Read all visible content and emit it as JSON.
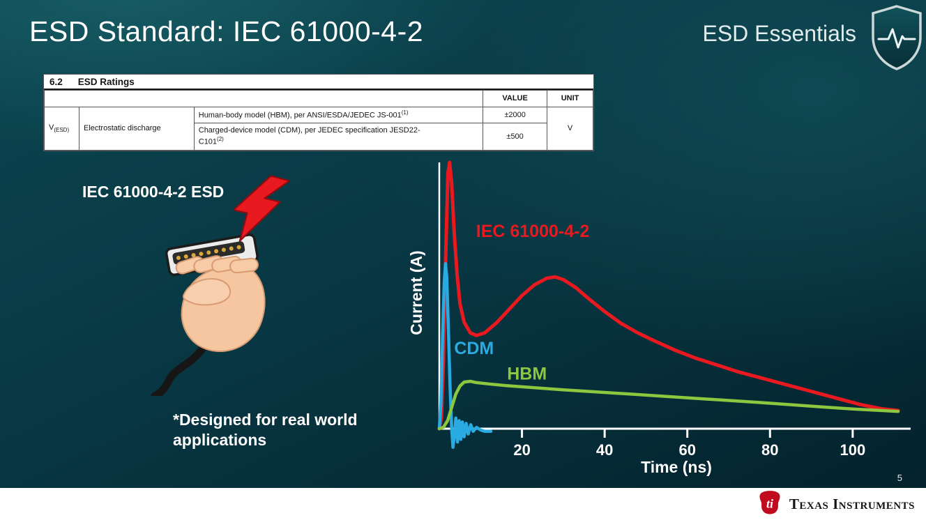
{
  "slide": {
    "title": "ESD Standard: IEC 61000-4-2",
    "brand": "ESD Essentials",
    "page_number": "5"
  },
  "ratings_table": {
    "section_number": "6.2",
    "section_title": "ESD Ratings",
    "headers": {
      "value": "VALUE",
      "unit": "UNIT"
    },
    "param": {
      "symbol": "V",
      "symbol_sub": "(ESD)",
      "name": "Electrostatic discharge"
    },
    "rows": [
      {
        "desc": "Human-body model (HBM), per ANSI/ESDA/JEDEC JS-001",
        "sup": "(1)",
        "value": "±2000"
      },
      {
        "desc": "Charged-device model (CDM), per JEDEC specification JESD22-C101",
        "sup": "(2)",
        "value": "±500"
      }
    ],
    "unit": "V"
  },
  "left": {
    "esd_label": "IEC 61000-4-2 ESD",
    "note": "*Designed for real world applications"
  },
  "chart_data": {
    "type": "line",
    "title": "",
    "xlabel": "Time (ns)",
    "ylabel": "Current (A)",
    "x_ticks": [
      20,
      40,
      60,
      80,
      100
    ],
    "xlim": [
      0,
      112
    ],
    "ylim": [
      -8,
      100
    ],
    "grid": false,
    "legend_position": "inline-labels",
    "series": [
      {
        "name": "IEC 61000-4-2",
        "color": "#e8191f",
        "label_pos": {
          "x": 8.9,
          "y": 72
        },
        "points": [
          [
            0,
            0
          ],
          [
            0.5,
            4
          ],
          [
            1,
            25
          ],
          [
            1.6,
            68
          ],
          [
            2.1,
            96
          ],
          [
            2.5,
            100
          ],
          [
            3,
            92
          ],
          [
            3.6,
            74
          ],
          [
            4.3,
            58
          ],
          [
            5,
            47
          ],
          [
            6,
            40
          ],
          [
            7.5,
            36
          ],
          [
            9,
            35
          ],
          [
            11,
            36
          ],
          [
            14,
            40
          ],
          [
            17,
            45
          ],
          [
            20,
            50
          ],
          [
            23,
            54
          ],
          [
            26,
            56.5
          ],
          [
            28,
            57
          ],
          [
            30,
            56
          ],
          [
            33,
            53
          ],
          [
            36,
            49
          ],
          [
            40,
            44
          ],
          [
            44,
            39.5
          ],
          [
            48,
            36
          ],
          [
            52,
            33
          ],
          [
            57,
            29.5
          ],
          [
            62,
            26.5
          ],
          [
            67,
            24
          ],
          [
            72,
            21.5
          ],
          [
            78,
            19
          ],
          [
            84,
            16.5
          ],
          [
            90,
            14
          ],
          [
            96,
            11.5
          ],
          [
            102,
            9
          ],
          [
            107,
            7.5
          ],
          [
            111,
            6.8
          ]
        ]
      },
      {
        "name": "CDM",
        "color": "#29abe2",
        "label_pos": {
          "x": 3.6,
          "y": 28
        },
        "points": [
          [
            0,
            0
          ],
          [
            0.4,
            10
          ],
          [
            0.8,
            34
          ],
          [
            1.2,
            55
          ],
          [
            1.5,
            62
          ],
          [
            1.8,
            57
          ],
          [
            2.2,
            38
          ],
          [
            2.6,
            16
          ],
          [
            3,
            0
          ],
          [
            3.3,
            -7
          ],
          [
            3.7,
            -2
          ],
          [
            4,
            4
          ],
          [
            4.4,
            -5
          ],
          [
            4.8,
            3
          ],
          [
            5.2,
            -4
          ],
          [
            5.6,
            2.5
          ],
          [
            6,
            -3
          ],
          [
            6.5,
            2
          ],
          [
            7,
            -2
          ],
          [
            7.6,
            1.5
          ],
          [
            8.2,
            -1
          ],
          [
            9,
            0.5
          ],
          [
            10,
            -0.5
          ],
          [
            11,
            -1
          ],
          [
            12.5,
            -1
          ]
        ]
      },
      {
        "name": "HBM",
        "color": "#8dc63f",
        "label_pos": {
          "x": 16.4,
          "y": 18.5
        },
        "points": [
          [
            0,
            0
          ],
          [
            1,
            0.5
          ],
          [
            2,
            3
          ],
          [
            3,
            8
          ],
          [
            4,
            13
          ],
          [
            5,
            16
          ],
          [
            6,
            17.5
          ],
          [
            7.5,
            17.8
          ],
          [
            9,
            17.3
          ],
          [
            12,
            16.8
          ],
          [
            16,
            16.2
          ],
          [
            22,
            15.5
          ],
          [
            30,
            14.6
          ],
          [
            38,
            13.8
          ],
          [
            46,
            13
          ],
          [
            54,
            12.2
          ],
          [
            62,
            11.4
          ],
          [
            70,
            10.6
          ],
          [
            78,
            9.8
          ],
          [
            86,
            8.9
          ],
          [
            94,
            8
          ],
          [
            100,
            7.4
          ],
          [
            106,
            6.9
          ],
          [
            111,
            6.5
          ]
        ]
      }
    ]
  },
  "footer": {
    "logo_text": "Texas Instruments",
    "logo_bug": "ti"
  },
  "icons": {
    "brand_shield": "shield-heartbeat",
    "esd_strike": "lightning-bolt",
    "illustration": "hand-holding-hdmi-connector",
    "ti_logo": "ti-bug"
  },
  "colors": {
    "accent_red": "#e8191f",
    "cdm_blue": "#29abe2",
    "hbm_green": "#8dc63f",
    "background_teal": "#083844",
    "ti_red": "#c00c1e"
  }
}
